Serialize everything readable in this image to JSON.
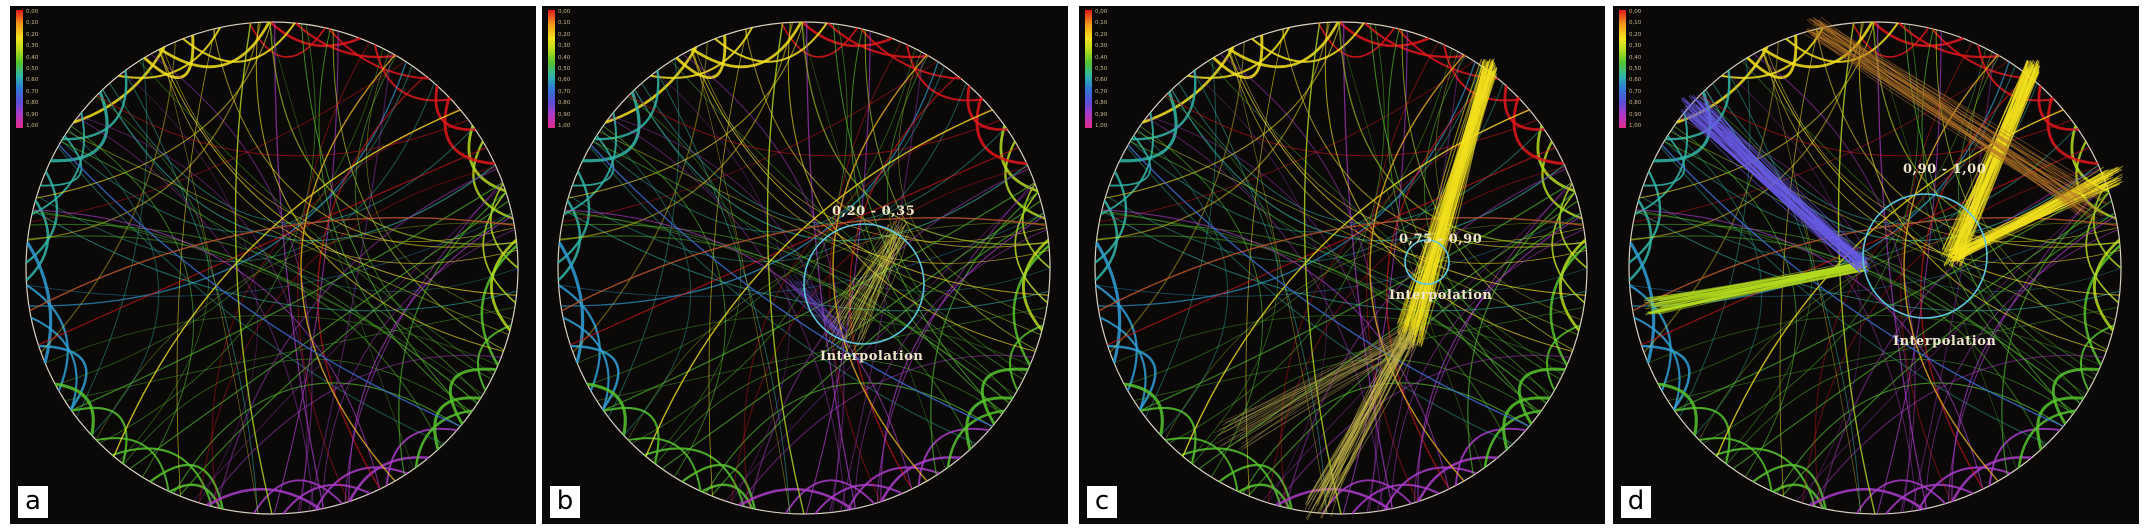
{
  "legend_ticks": [
    "0,00",
    "0,10",
    "0,20",
    "0,30",
    "0,40",
    "0,50",
    "0,60",
    "0,70",
    "0,80",
    "0,90",
    "1,00"
  ],
  "panels": [
    {
      "tag": "a",
      "range_label": "",
      "interp_label": ""
    },
    {
      "tag": "b",
      "range_label": "0,20 - 0,35",
      "interp_label": "Interpolation"
    },
    {
      "tag": "c",
      "range_label": "0,75 - 0,90",
      "interp_label": "Interpolation"
    },
    {
      "tag": "d",
      "range_label": "0,90 - 1,00",
      "interp_label": "Interpolation"
    }
  ],
  "colors": {
    "background": "#0b0908",
    "lens": "#5fc7e0"
  }
}
